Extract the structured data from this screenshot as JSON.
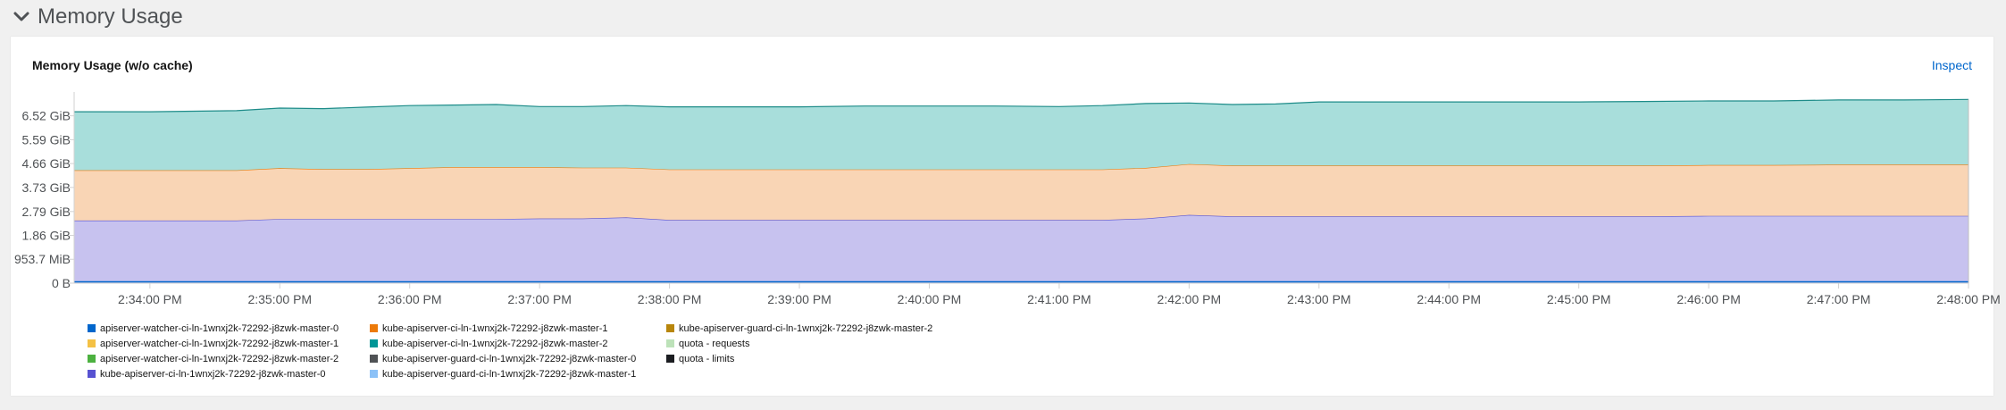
{
  "section": {
    "title": "Memory Usage",
    "icon": "chevron-down-icon"
  },
  "card": {
    "title": "Memory Usage (w/o cache)",
    "inspect_label": "Inspect"
  },
  "chart_data": {
    "type": "area",
    "stacked": true,
    "title": "Memory Usage (w/o cache)",
    "y_tick_labels": [
      "6.52 GiB",
      "5.59 GiB",
      "4.66 GiB",
      "3.73 GiB",
      "2.79 GiB",
      "1.86 GiB",
      "953.7 MiB",
      "0 B"
    ],
    "y_tick_values_gib": [
      6.52,
      5.59,
      4.66,
      3.73,
      2.79,
      1.86,
      0.9313,
      0
    ],
    "ylim_gib": [
      0,
      7.1
    ],
    "x_tick_labels": [
      "2:34:00 PM",
      "2:35:00 PM",
      "2:36:00 PM",
      "2:37:00 PM",
      "2:38:00 PM",
      "2:39:00 PM",
      "2:40:00 PM",
      "2:41:00 PM",
      "2:42:00 PM",
      "2:43:00 PM",
      "2:44:00 PM",
      "2:45:00 PM",
      "2:46:00 PM",
      "2:47:00 PM",
      "2:48:00 PM"
    ],
    "x_range": [
      "2:33:25 PM",
      "2:48:00 PM"
    ],
    "grid": true,
    "legend_position": "bottom",
    "x": [
      "2:33:25 PM",
      "2:34:00 PM",
      "2:34:20 PM",
      "2:34:40 PM",
      "2:35:00 PM",
      "2:35:20 PM",
      "2:35:40 PM",
      "2:36:00 PM",
      "2:36:20 PM",
      "2:36:40 PM",
      "2:37:00 PM",
      "2:37:20 PM",
      "2:37:40 PM",
      "2:38:00 PM",
      "2:38:30 PM",
      "2:39:00 PM",
      "2:39:30 PM",
      "2:40:00 PM",
      "2:40:30 PM",
      "2:41:00 PM",
      "2:41:20 PM",
      "2:41:40 PM",
      "2:42:00 PM",
      "2:42:20 PM",
      "2:42:40 PM",
      "2:43:00 PM",
      "2:43:30 PM",
      "2:44:00 PM",
      "2:44:30 PM",
      "2:45:00 PM",
      "2:45:30 PM",
      "2:46:00 PM",
      "2:46:30 PM",
      "2:47:00 PM",
      "2:47:30 PM",
      "2:48:00 PM"
    ],
    "series": [
      {
        "name": "kube-apiserver-ci-ln-1wnxj2k-72292-j8zwk-master-0",
        "color": "#c7c2ef",
        "stroke": "#5752d1",
        "values": [
          2.44,
          2.44,
          2.44,
          2.44,
          2.5,
          2.5,
          2.5,
          2.5,
          2.5,
          2.5,
          2.52,
          2.52,
          2.56,
          2.46,
          2.46,
          2.46,
          2.46,
          2.46,
          2.46,
          2.46,
          2.46,
          2.52,
          2.66,
          2.6,
          2.6,
          2.6,
          2.6,
          2.6,
          2.6,
          2.6,
          2.6,
          2.62,
          2.62,
          2.62,
          2.62,
          2.62
        ]
      },
      {
        "name": "kube-apiserver-ci-ln-1wnxj2k-72292-j8zwk-master-1",
        "color": "#f9d5b5",
        "stroke": "#ec7a08",
        "values": [
          1.96,
          1.96,
          1.96,
          1.96,
          1.98,
          1.94,
          1.94,
          1.98,
          2.02,
          2.02,
          2.0,
          1.98,
          1.94,
          1.97,
          1.97,
          1.97,
          1.97,
          1.97,
          1.97,
          1.97,
          1.97,
          1.97,
          1.98,
          1.98,
          1.98,
          1.98,
          1.98,
          1.98,
          1.98,
          1.98,
          1.98,
          1.98,
          1.98,
          2.0,
          2.0,
          2.0
        ]
      },
      {
        "name": "kube-apiserver-ci-ln-1wnxj2k-72292-j8zwk-master-2",
        "color": "#a8dedb",
        "stroke": "#1e8c89",
        "values": [
          2.28,
          2.28,
          2.3,
          2.32,
          2.34,
          2.36,
          2.42,
          2.44,
          2.42,
          2.44,
          2.36,
          2.38,
          2.42,
          2.44,
          2.44,
          2.44,
          2.47,
          2.47,
          2.47,
          2.45,
          2.49,
          2.51,
          2.38,
          2.38,
          2.4,
          2.48,
          2.48,
          2.48,
          2.48,
          2.48,
          2.5,
          2.5,
          2.5,
          2.52,
          2.52,
          2.54
        ]
      }
    ]
  },
  "legend": [
    {
      "label": "apiserver-watcher-ci-ln-1wnxj2k-72292-j8zwk-master-0",
      "color": "#0066cc"
    },
    {
      "label": "apiserver-watcher-ci-ln-1wnxj2k-72292-j8zwk-master-1",
      "color": "#f4c145"
    },
    {
      "label": "apiserver-watcher-ci-ln-1wnxj2k-72292-j8zwk-master-2",
      "color": "#4cb140"
    },
    {
      "label": "kube-apiserver-ci-ln-1wnxj2k-72292-j8zwk-master-0",
      "color": "#5752d1"
    },
    {
      "label": "kube-apiserver-ci-ln-1wnxj2k-72292-j8zwk-master-1",
      "color": "#ec7a08"
    },
    {
      "label": "kube-apiserver-ci-ln-1wnxj2k-72292-j8zwk-master-2",
      "color": "#009596"
    },
    {
      "label": "kube-apiserver-guard-ci-ln-1wnxj2k-72292-j8zwk-master-0",
      "color": "#4f5255"
    },
    {
      "label": "kube-apiserver-guard-ci-ln-1wnxj2k-72292-j8zwk-master-1",
      "color": "#8bc1f7"
    },
    {
      "label": "kube-apiserver-guard-ci-ln-1wnxj2k-72292-j8zwk-master-2",
      "color": "#b8860b"
    },
    {
      "label": "quota - requests",
      "color": "#bde2b9"
    },
    {
      "label": "quota - limits",
      "color": "#1b1d21"
    }
  ]
}
